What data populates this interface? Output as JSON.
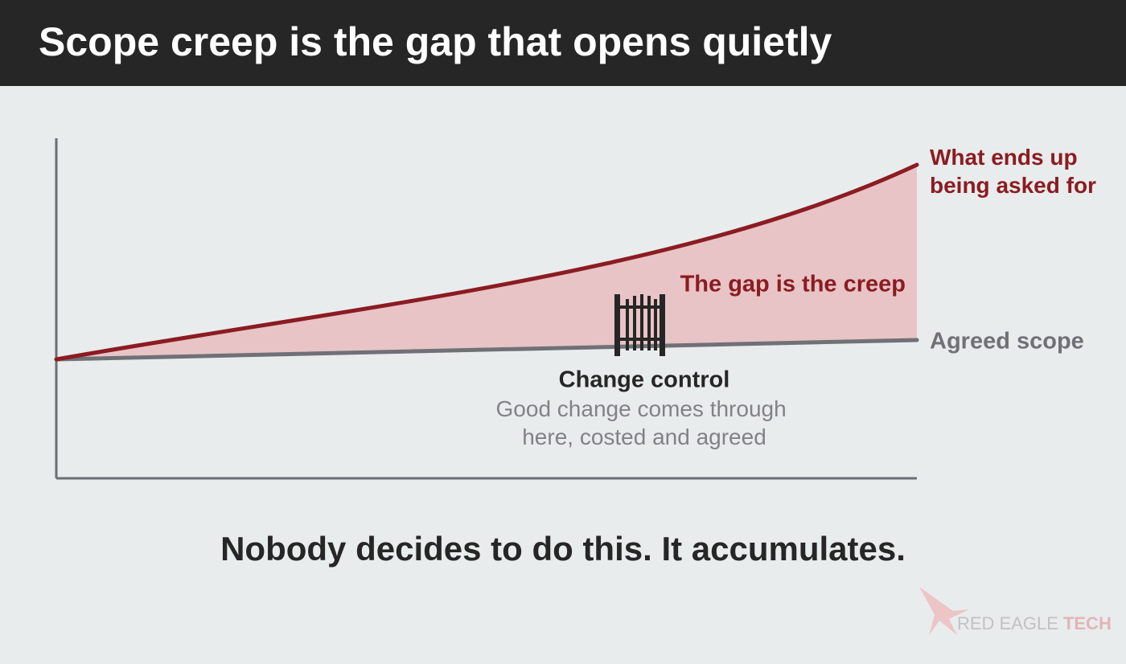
{
  "header": {
    "title": "Scope creep is the gap that opens quietly"
  },
  "diagram": {
    "upper_label": [
      "What ends up",
      "being asked for"
    ],
    "gap_label": "The gap is the creep",
    "lower_label": "Agreed scope",
    "gate": {
      "title": "Change control",
      "caption": [
        "Good change comes through",
        "here, costed and agreed"
      ]
    }
  },
  "footer": {
    "text": "Nobody decides to do this. It accumulates."
  },
  "logo": {
    "name": "RED EAGLE",
    "suffix": "TECH"
  }
}
